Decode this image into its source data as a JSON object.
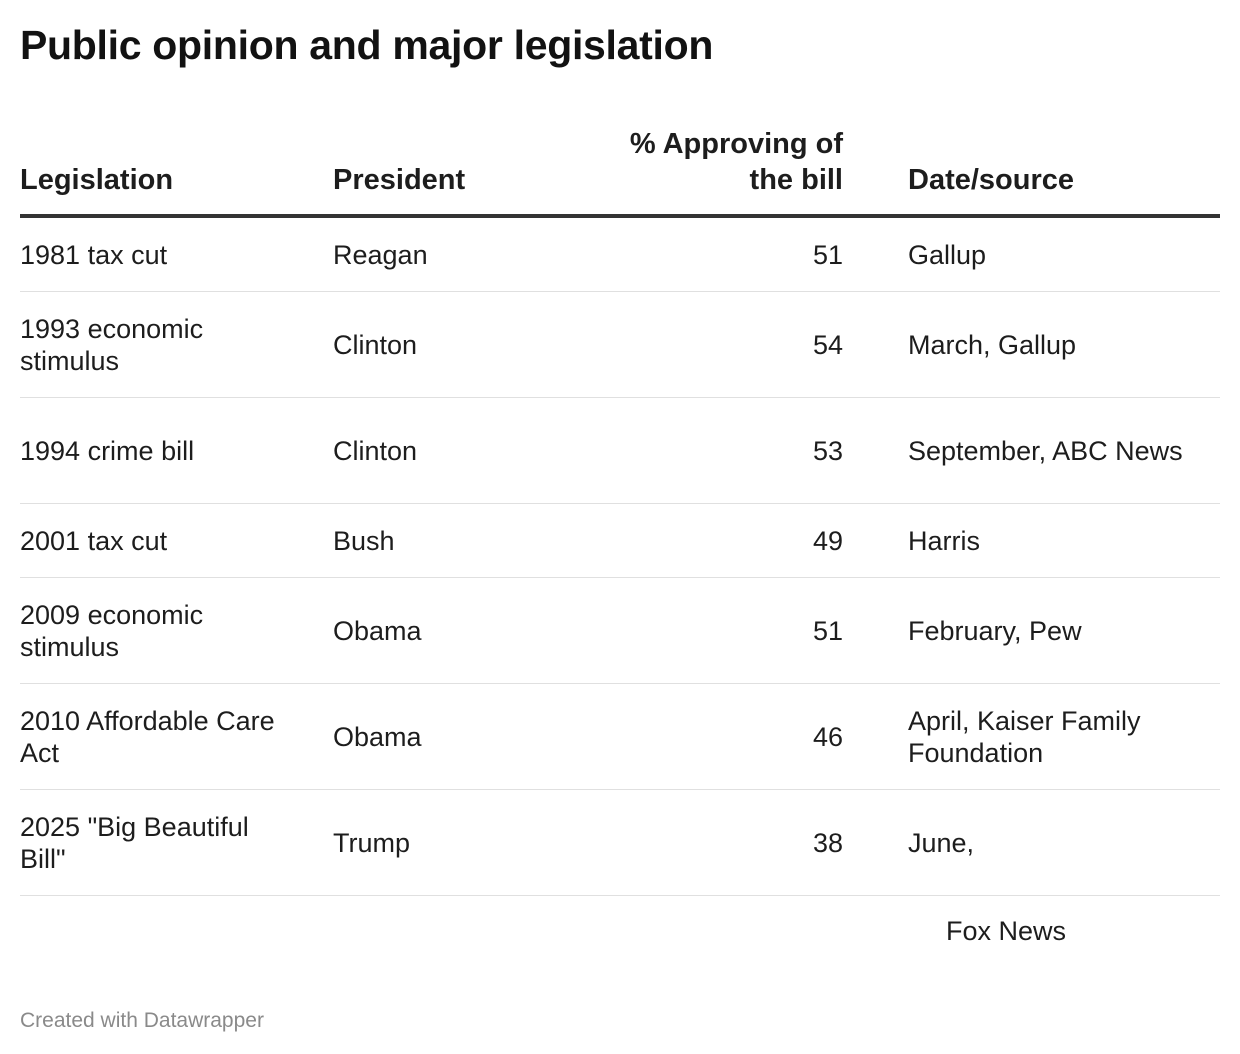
{
  "title": "Public opinion and major legislation",
  "columns": {
    "legislation": "Legislation",
    "president": "President",
    "approval": "% Approving of the bill",
    "source": "Date/source"
  },
  "chart_data": {
    "type": "table",
    "title": "Public opinion and major legislation",
    "columns": [
      "Legislation",
      "President",
      "% Approving of the bill",
      "Date/source"
    ],
    "rows": [
      {
        "legislation": "1981 tax cut",
        "president": "Reagan",
        "approval": "51",
        "source": "Gallup"
      },
      {
        "legislation": "1993 economic stimulus",
        "president": "Clinton",
        "approval": "54",
        "source": "March, Gallup"
      },
      {
        "legislation": "1994 crime bill",
        "president": "Clinton",
        "approval": "53",
        "source": "September, ABC News"
      },
      {
        "legislation": "2001 tax cut",
        "president": "Bush",
        "approval": "49",
        "source": "Harris"
      },
      {
        "legislation": "2009 economic stimulus",
        "president": "Obama",
        "approval": "51",
        "source": "February, Pew"
      },
      {
        "legislation": "2010 Affordable Care Act",
        "president": "Obama",
        "approval": "46",
        "source": "April, Kaiser Family Foundation"
      },
      {
        "legislation": "2025 \"Big Beautiful Bill\"",
        "president": "Trump",
        "approval": "38",
        "source": "June,"
      }
    ],
    "source_continuation": "Fox News"
  },
  "footer": "Created with Datawrapper"
}
